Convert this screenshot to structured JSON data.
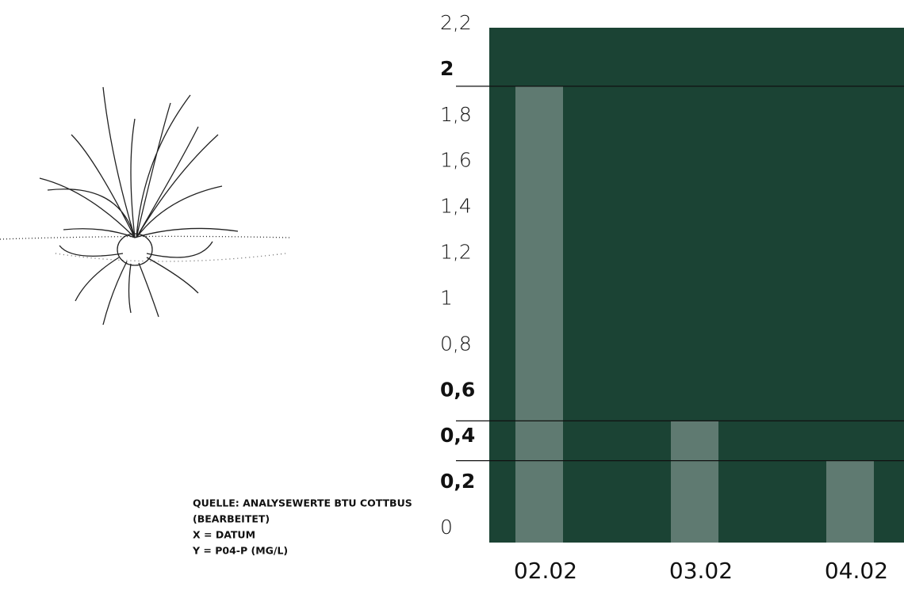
{
  "chart_data": {
    "type": "bar",
    "categories": [
      "02.02",
      "03.02",
      "04.02"
    ],
    "values": [
      1.95,
      0.52,
      0.35
    ],
    "color": "#5f7a71",
    "background": "#1b4334",
    "ylim": [
      0,
      2.2
    ],
    "yticks": [
      0,
      {
        "value": 0.2,
        "label": "0,2"
      },
      {
        "value": 0.4,
        "label": "0,4"
      },
      {
        "value": 0.6,
        "label": "0,6"
      },
      {
        "value": 0.8,
        "label": "0,8"
      },
      1,
      {
        "value": 1.2,
        "label": "1,2"
      },
      {
        "value": 1.4,
        "label": "1,4"
      },
      {
        "value": 1.6,
        "label": "1,6"
      },
      {
        "value": 1.8,
        "label": "1,8"
      },
      2,
      {
        "value": 2.2,
        "label": "2,2"
      }
    ],
    "bold_yticks": [
      0.2,
      0.4,
      0.6,
      2
    ],
    "value_lines": true,
    "notes": [
      "QUELLE: ANALYSEWERTE BTU COTTBUS",
      "(BEARBEITET)",
      "X = DATUM",
      "Y = P04-P (MG/L)"
    ]
  }
}
